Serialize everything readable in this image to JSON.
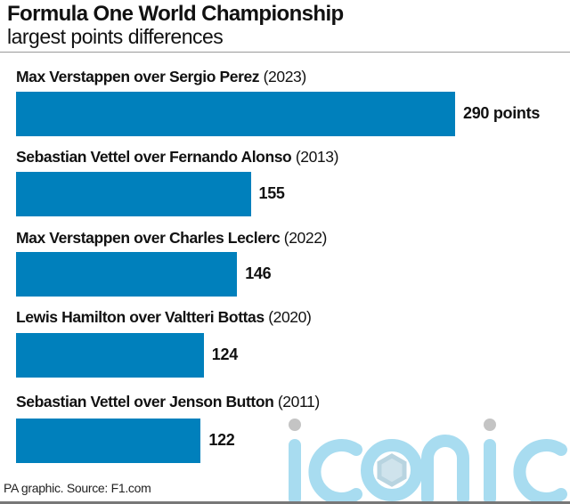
{
  "chart_data": {
    "type": "bar",
    "orientation": "horizontal",
    "title": "Formula One World Championship",
    "subtitle": "largest points differences",
    "categories": [
      {
        "name": "Max Verstappen over Sergio Perez",
        "year": "(2023)"
      },
      {
        "name": "Sebastian Vettel over Fernando Alonso",
        "year": "(2013)"
      },
      {
        "name": "Max Verstappen over Charles Leclerc",
        "year": "(2022)"
      },
      {
        "name": "Lewis Hamilton over Valtteri Bottas",
        "year": "(2020)"
      },
      {
        "name": "Sebastian Vettel over Jenson Button",
        "year": "(2011)"
      }
    ],
    "values": [
      290,
      155,
      146,
      124,
      122
    ],
    "value_labels": [
      "290 points",
      "155",
      "146",
      "124",
      "122"
    ],
    "xlim": [
      0,
      290
    ],
    "grid": false,
    "bar_color": "#0080bc"
  },
  "footer": {
    "source": "PA graphic. Source: F1.com"
  },
  "watermark": {
    "text": "iconic",
    "color": "#a8dcf0"
  }
}
